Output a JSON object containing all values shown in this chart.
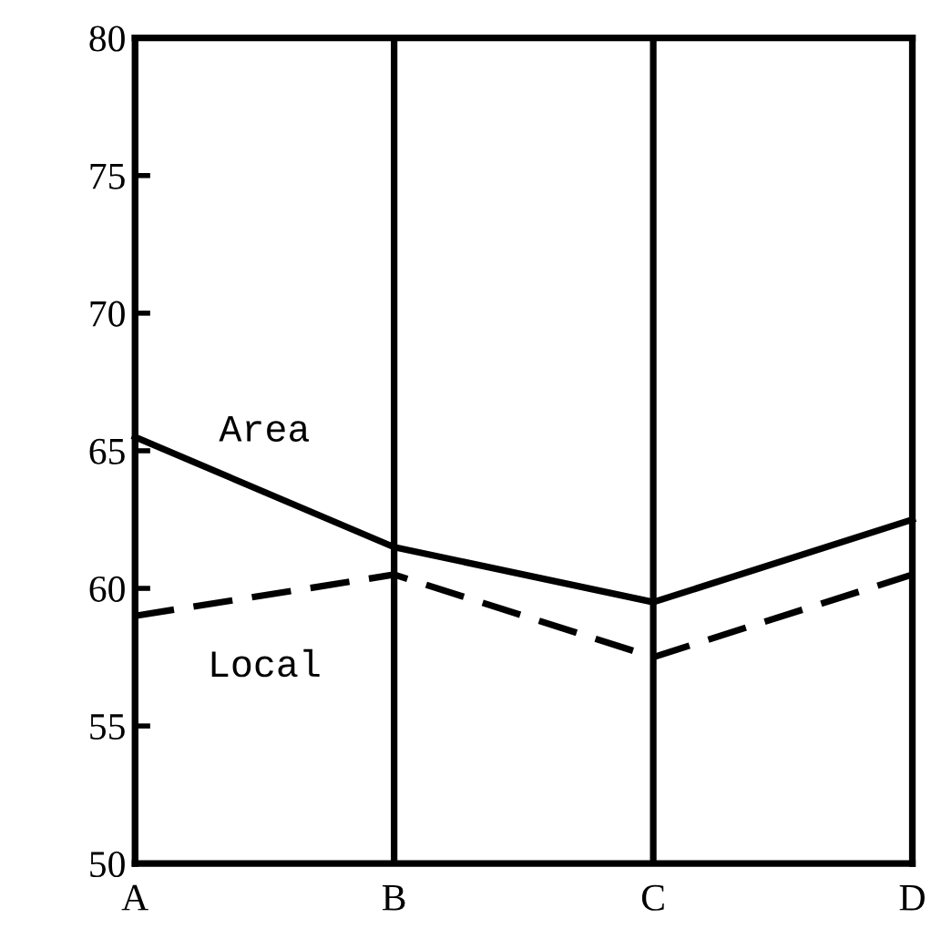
{
  "chart_data": {
    "type": "line",
    "categories": [
      "A",
      "B",
      "C",
      "D"
    ],
    "series": [
      {
        "name": "Area",
        "color": "#000000",
        "line_style": "solid",
        "values": [
          65.5,
          61.5,
          59.5,
          62.5
        ]
      },
      {
        "name": "Local",
        "color": "#000000",
        "line_style": "dashed",
        "values": [
          59,
          60.5,
          57.5,
          60.5
        ]
      }
    ],
    "ylim": [
      50,
      80
    ],
    "yticks": [
      50,
      55,
      60,
      65,
      70,
      75,
      80
    ],
    "grid": "x",
    "marker": "none",
    "legend": false
  }
}
